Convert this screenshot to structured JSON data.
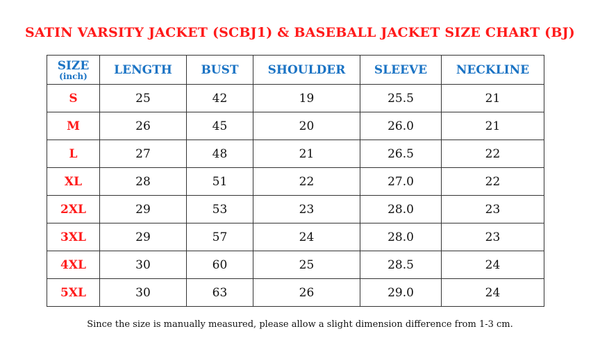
{
  "title": "SATIN VARSITY JACKET (SCBJ1) & BASEBALL JACKET SIZE CHART (BJ)",
  "table": {
    "size_header": "SIZE",
    "size_unit": "(inch)",
    "headers": [
      "LENGTH",
      "BUST",
      "SHOULDER",
      "SLEEVE",
      "NECKLINE"
    ],
    "rows": [
      {
        "size": "S",
        "values": [
          "25",
          "42",
          "19",
          "25.5",
          "21"
        ]
      },
      {
        "size": "M",
        "values": [
          "26",
          "45",
          "20",
          "26.0",
          "21"
        ]
      },
      {
        "size": "L",
        "values": [
          "27",
          "48",
          "21",
          "26.5",
          "22"
        ]
      },
      {
        "size": "XL",
        "values": [
          "28",
          "51",
          "22",
          "27.0",
          "22"
        ]
      },
      {
        "size": "2XL",
        "values": [
          "29",
          "53",
          "23",
          "28.0",
          "23"
        ]
      },
      {
        "size": "3XL",
        "values": [
          "29",
          "57",
          "24",
          "28.0",
          "23"
        ]
      },
      {
        "size": "4XL",
        "values": [
          "30",
          "60",
          "25",
          "28.5",
          "24"
        ]
      },
      {
        "size": "5XL",
        "values": [
          "30",
          "63",
          "26",
          "29.0",
          "24"
        ]
      }
    ]
  },
  "note": "Since the size is manually measured, please allow a slight dimension difference from 1-3 cm.",
  "colors": {
    "title": "#ff1a1a",
    "header": "#1a73c4",
    "size": "#ff1a1a"
  }
}
